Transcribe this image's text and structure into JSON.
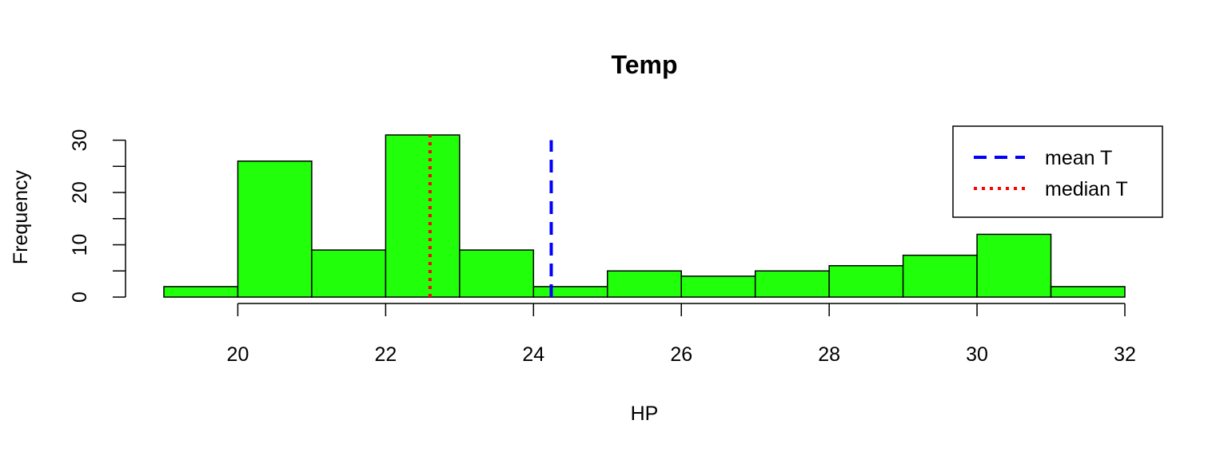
{
  "chart_data": {
    "type": "histogram",
    "title": "Temp",
    "xlabel": "HP",
    "ylabel": "Frequency",
    "bin_edges": [
      19,
      20,
      21,
      22,
      23,
      24,
      25,
      26,
      27,
      28,
      29,
      30,
      31,
      32
    ],
    "counts": [
      2,
      26,
      9,
      31,
      9,
      2,
      5,
      4,
      5,
      6,
      8,
      12,
      2
    ],
    "bar_color": "#22ff0a",
    "xlim": [
      19,
      32
    ],
    "ylim": [
      0,
      31
    ],
    "x_ticks": [
      20,
      22,
      24,
      26,
      28,
      30,
      32
    ],
    "y_ticks": [
      0,
      5,
      10,
      15,
      20,
      25,
      30
    ],
    "y_tick_labels": [
      0,
      10,
      20,
      30
    ],
    "grid": false,
    "reference_lines": [
      {
        "name": "mean T",
        "x": 24.24,
        "y_top": 30,
        "color": "#0000ff",
        "style": "dashed"
      },
      {
        "name": "median T",
        "x": 22.6,
        "y_top": 31,
        "color": "#ff0000",
        "style": "dotted"
      }
    ],
    "legend": {
      "position": "top-right",
      "entries": [
        "mean T",
        "median T"
      ]
    }
  }
}
